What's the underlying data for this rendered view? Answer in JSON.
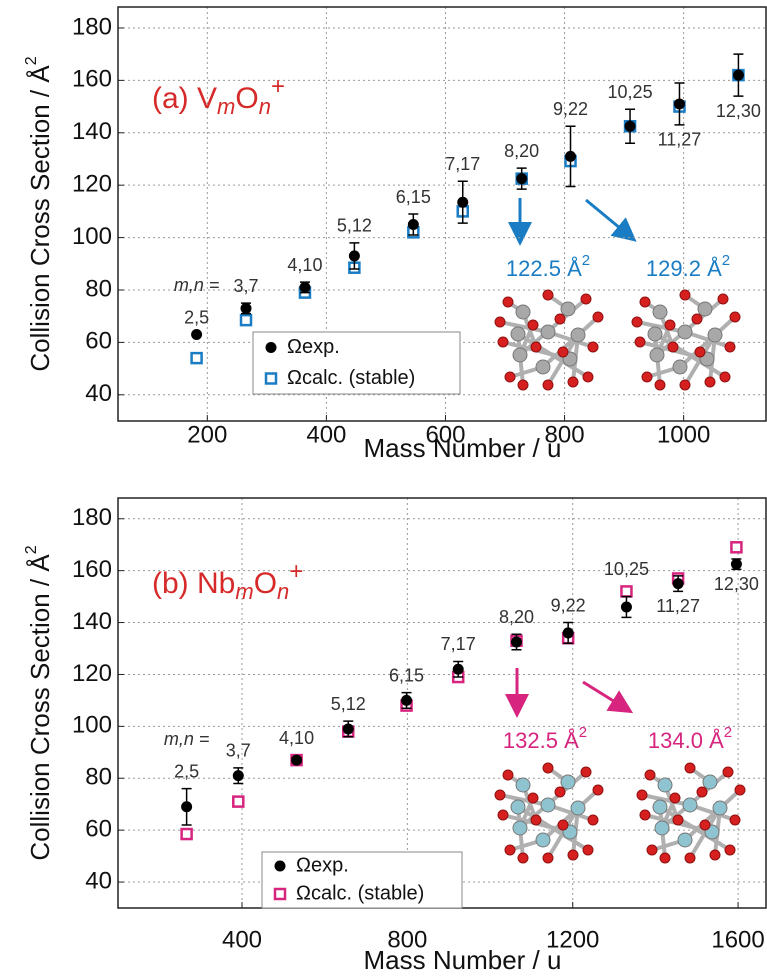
{
  "chart_data": [
    {
      "type": "scatter",
      "label_parts": [
        "(a) V",
        "m",
        "O",
        "n",
        "+"
      ],
      "title_color": "#d62a2a",
      "xlabel": "Mass Number / u",
      "ylabel": "Collision Cross Section / Å",
      "ylabel_sup": "2",
      "xlim": [
        50,
        1140
      ],
      "xticks": [
        200,
        400,
        600,
        800,
        1000
      ],
      "ylim": [
        30,
        188
      ],
      "yticks": [
        40,
        60,
        80,
        100,
        120,
        140,
        160,
        180
      ],
      "grid": true,
      "mn_label": "m,n =",
      "point_labels": [
        "2,5",
        "3,7",
        "4,10",
        "5,12",
        "6,15",
        "7,17",
        "8,20",
        "9,22",
        "10,25",
        "11,27",
        "12,30"
      ],
      "x": [
        182,
        265,
        364,
        447,
        546,
        629,
        728,
        810,
        910,
        993,
        1092
      ],
      "series": [
        {
          "name": "Ωexp.",
          "color": "#000000",
          "marker": "circle",
          "values": [
            63,
            73,
            81,
            93,
            105,
            113.5,
            122.5,
            131,
            142.5,
            151,
            162
          ],
          "errors": [
            0,
            2,
            2,
            5,
            4,
            8,
            4,
            11.5,
            6.5,
            8,
            8
          ]
        },
        {
          "name": "Ωcalc. (stable)",
          "color": "#1a7dc4",
          "marker": "square",
          "values": [
            54,
            68.5,
            79,
            88.5,
            102,
            110,
            122.5,
            129.2,
            142.5,
            150,
            162
          ]
        }
      ],
      "annotations": [
        {
          "text": "122.5 Å",
          "sup": "2"
        },
        {
          "text": "129.2 Å",
          "sup": "2"
        }
      ],
      "annotation_color": "#1a7dc4"
    },
    {
      "type": "scatter",
      "label_parts": [
        "(b) Nb",
        "m",
        "O",
        "n",
        "+"
      ],
      "title_color": "#d62a2a",
      "xlabel": "Mass Number / u",
      "ylabel": "Collision Cross Section / Å",
      "ylabel_sup": "2",
      "xlim": [
        100,
        1670
      ],
      "xticks": [
        400,
        800,
        1200,
        1600
      ],
      "ylim": [
        30,
        188
      ],
      "yticks": [
        40,
        60,
        80,
        100,
        120,
        140,
        160,
        180
      ],
      "grid": true,
      "mn_label": "m,n =",
      "point_labels": [
        "2,5",
        "3,7",
        "4,10",
        "5,12",
        "6,15",
        "7,17",
        "8,20",
        "9,22",
        "10,25",
        "11,27",
        "12,30"
      ],
      "x": [
        266,
        391,
        532,
        657,
        798,
        923,
        1064,
        1189,
        1330,
        1455,
        1596
      ],
      "series": [
        {
          "name": "Ωexp.",
          "color": "#000000",
          "marker": "circle",
          "values": [
            69,
            81,
            87,
            99,
            110,
            122,
            132.5,
            136,
            146,
            155,
            162.5
          ],
          "errors": [
            7,
            3,
            1,
            3,
            3,
            3,
            3,
            4,
            4,
            3,
            2
          ]
        },
        {
          "name": "Ωcalc. (stable)",
          "color": "#d6247f",
          "marker": "square",
          "values": [
            58.5,
            71,
            87,
            98,
            108,
            119,
            133,
            134,
            152,
            157,
            169
          ]
        }
      ],
      "annotations": [
        {
          "text": "132.5 Å",
          "sup": "2"
        },
        {
          "text": "134.0 Å",
          "sup": "2"
        }
      ],
      "annotation_color": "#d6247f"
    }
  ]
}
